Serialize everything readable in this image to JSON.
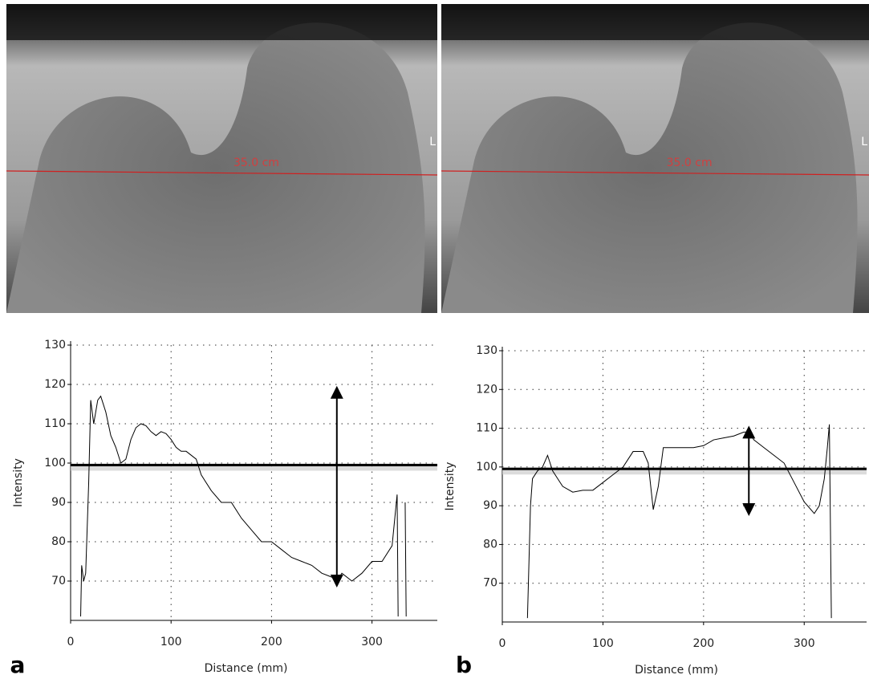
{
  "images": [
    {
      "measurement": "35.0 cm",
      "orientation": "L"
    },
    {
      "measurement": "35.0 cm",
      "orientation": "L"
    }
  ],
  "chart_data": [
    {
      "type": "line",
      "panel": "a",
      "xlabel": "Distance (mm)",
      "ylabel": "Intensity",
      "xlim": [
        0,
        365
      ],
      "ylim": [
        60,
        130
      ],
      "xticks": [
        0,
        100,
        200,
        300
      ],
      "yticks": [
        70,
        80,
        90,
        100,
        110,
        120,
        130
      ],
      "grid": true,
      "reference_line": 99.5,
      "arrow": {
        "x": 265,
        "y_from": 118,
        "y_to": 70
      },
      "series": [
        {
          "color": "#000000",
          "x": [
            10,
            11,
            13,
            15,
            18,
            20,
            23,
            27,
            30,
            35,
            40,
            45,
            50,
            55,
            60,
            65,
            70,
            75,
            80,
            85,
            90,
            95,
            100,
            105,
            110,
            115,
            120,
            125,
            130,
            140,
            150,
            160,
            170,
            180,
            190,
            200,
            210,
            220,
            230,
            240,
            250,
            260,
            265,
            270,
            280,
            290,
            300,
            310,
            320,
            325,
            326,
            330,
            333,
            334
          ],
          "values": [
            61,
            74,
            70,
            72,
            95,
            116,
            110,
            116,
            117,
            113,
            107,
            104,
            100,
            101,
            106,
            109,
            110,
            109.5,
            108,
            107,
            108,
            107.5,
            106,
            104,
            103,
            103,
            102,
            101,
            97,
            93,
            90,
            90,
            86,
            83,
            80,
            80,
            78,
            76,
            75,
            74,
            72,
            71,
            70,
            72,
            70,
            72,
            75,
            75,
            79,
            92,
            61,
            null,
            90,
            61
          ]
        }
      ]
    },
    {
      "type": "line",
      "panel": "b",
      "xlabel": "Distance (mm)",
      "ylabel": "Intensity",
      "xlim": [
        0,
        362
      ],
      "ylim": [
        60,
        130
      ],
      "xticks": [
        0,
        100,
        200,
        300
      ],
      "yticks": [
        70,
        80,
        90,
        100,
        110,
        120,
        130
      ],
      "grid": true,
      "reference_line": 99.5,
      "arrow": {
        "x": 245,
        "y_from": 109,
        "y_to": 89
      },
      "series": [
        {
          "color": "#000000",
          "x": [
            25,
            28,
            30,
            35,
            40,
            45,
            50,
            55,
            60,
            70,
            80,
            90,
            100,
            110,
            120,
            130,
            140,
            145,
            150,
            155,
            160,
            170,
            180,
            190,
            200,
            210,
            220,
            230,
            240,
            245,
            250,
            260,
            270,
            280,
            290,
            300,
            310,
            315,
            320,
            323,
            325,
            327
          ],
          "values": [
            61,
            90,
            97,
            99,
            100,
            103,
            99,
            97,
            95,
            93.5,
            94,
            94,
            96,
            98,
            100,
            104,
            104,
            101,
            89,
            95,
            105,
            105,
            105,
            105,
            105.5,
            107,
            107.5,
            108,
            109,
            109,
            107,
            105,
            103,
            101,
            96,
            91,
            88,
            90,
            97,
            105,
            111,
            61
          ]
        }
      ]
    }
  ]
}
